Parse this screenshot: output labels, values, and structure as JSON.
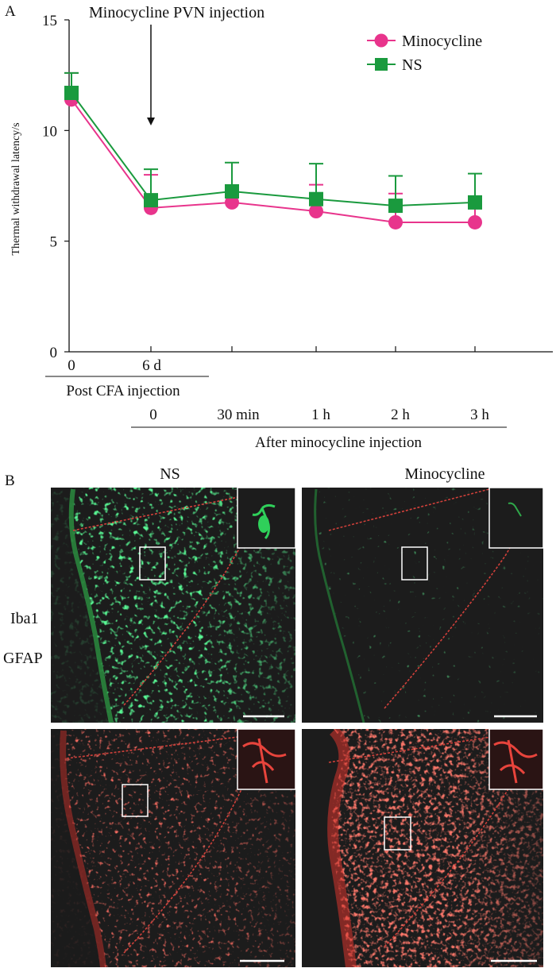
{
  "panel_a": {
    "label": "A",
    "annotation": "Minocycline PVN injection",
    "ylabel": "Thermal withdrawal latency/s",
    "post_cfa_label": "Post CFA injection",
    "after_label": "After minocycline injection",
    "post_cfa_ticks": [
      "0",
      "6 d"
    ],
    "after_ticks": [
      "0",
      "30 min",
      "1 h",
      "2 h",
      "3 h"
    ],
    "yticks": [
      "0",
      "5",
      "10",
      "15"
    ],
    "legend": [
      "Minocycline",
      "NS"
    ]
  },
  "chart_data": {
    "type": "line",
    "x": [
      "0",
      "6 d / 0",
      "30 min",
      "1 h",
      "2 h",
      "3 h"
    ],
    "ylim": [
      0,
      15
    ],
    "ylabel": "Thermal withdrawal latency/s",
    "series": [
      {
        "name": "Minocycline",
        "color": "#e8348c",
        "marker": "circle",
        "values": [
          11.4,
          6.5,
          6.75,
          6.35,
          5.85,
          5.85
        ],
        "errors": [
          1.2,
          1.5,
          null,
          1.2,
          1.3,
          0.7
        ]
      },
      {
        "name": "NS",
        "color": "#1a9a3e",
        "marker": "square",
        "values": [
          11.7,
          6.85,
          7.25,
          6.9,
          6.6,
          6.75
        ],
        "errors": [
          0.9,
          1.4,
          1.3,
          1.6,
          1.35,
          1.3
        ]
      }
    ]
  },
  "panel_b": {
    "label": "B",
    "col_labels": [
      "NS",
      "Minocycline"
    ],
    "row_labels": [
      "Iba1",
      "GFAP"
    ]
  }
}
